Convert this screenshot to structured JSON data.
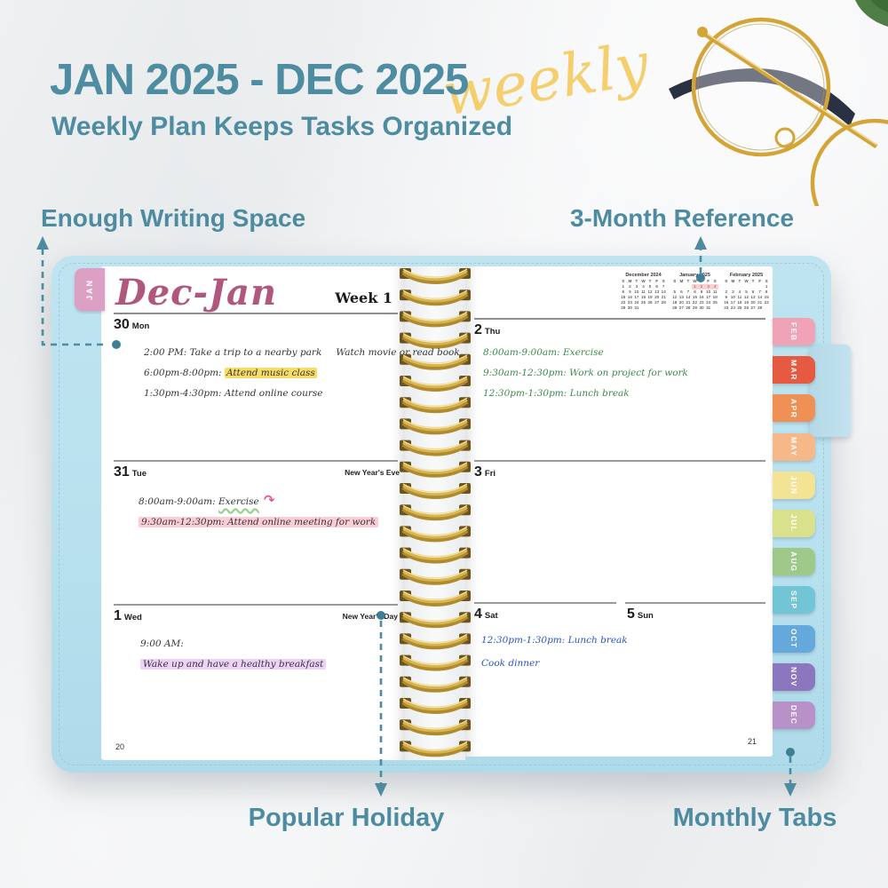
{
  "header": {
    "title": "JAN 2025 - DEC 2025",
    "script_word": "weekly",
    "subtitle": "Weekly Plan Keeps Tasks Organized"
  },
  "annotations": {
    "writing_space": "Enough Writing Space",
    "reference": "3-Month Reference",
    "holiday": "Popular Holiday",
    "tabs": "Monthly Tabs"
  },
  "colors": {
    "accent_teal": "#4D8BA1",
    "script_yellow": "#F5CE6E",
    "cover_blue": "#BAE2EF",
    "month_title_mauve": "#B0577D",
    "spiral_gold": "#C9A23E"
  },
  "planner": {
    "jan_tab_label": "JAN",
    "month_tabs": [
      {
        "label": "FEB",
        "color": "#f0a3b6"
      },
      {
        "label": "MAR",
        "color": "#e55a41"
      },
      {
        "label": "APR",
        "color": "#ef9054"
      },
      {
        "label": "MAY",
        "color": "#f6b888"
      },
      {
        "label": "JUN",
        "color": "#f3e394"
      },
      {
        "label": "JUL",
        "color": "#d9e18c"
      },
      {
        "label": "AUG",
        "color": "#9ec98b"
      },
      {
        "label": "SEP",
        "color": "#72c5d4"
      },
      {
        "label": "OCT",
        "color": "#64a8dc"
      },
      {
        "label": "NOV",
        "color": "#8a77bd"
      },
      {
        "label": "DEC",
        "color": "#b791c8"
      }
    ],
    "left_page": {
      "month_title": "Dec-Jan",
      "week_label": "Week 1",
      "page_number": "20",
      "days": [
        {
          "date": "30",
          "weekday": "Mon",
          "note": "",
          "entries": [
            {
              "parts": [
                {
                  "text": "2:00 PM: Take a trip to a nearby park"
                },
                {
                  "text": "Watch movie or read book",
                  "cls": "gap"
                }
              ]
            },
            {
              "parts": [
                {
                  "text": "6:00pm-8:00pm: "
                },
                {
                  "text": "Attend music class",
                  "cls": "hl-yellow"
                }
              ]
            },
            {
              "parts": [
                {
                  "text": "1:30pm-4:30pm: Attend online course"
                }
              ]
            }
          ]
        },
        {
          "date": "31",
          "weekday": "Tue",
          "note": "New Year's Eve",
          "entries": [
            {
              "parts": [
                {
                  "text": "8:00am-9:00am: "
                },
                {
                  "text": "Exercise",
                  "cls": "u-wavy"
                },
                {
                  "text": " ↷",
                  "cls": "arrow-pink"
                }
              ]
            },
            {
              "parts": [
                {
                  "text": "9:30am-12:30pm: Attend online meeting for work",
                  "cls": "hl-pink"
                }
              ]
            }
          ]
        },
        {
          "date": "1",
          "weekday": "Wed",
          "note": "New Year's Day",
          "entries": [
            {
              "parts": [
                {
                  "text": "9:00 AM:"
                }
              ]
            },
            {
              "parts": [
                {
                  "text": "Wake up and have a healthy breakfast",
                  "cls": "hl-purple"
                }
              ]
            }
          ]
        }
      ]
    },
    "right_page": {
      "page_number": "21",
      "mini_calendars": [
        {
          "title": "December 2024",
          "day_header": [
            "S",
            "M",
            "T",
            "W",
            "T",
            "F",
            "S"
          ],
          "weeks": [
            [
              "1",
              "2",
              "3",
              "4",
              "5",
              "6",
              "7"
            ],
            [
              "8",
              "9",
              "10",
              "11",
              "12",
              "13",
              "14"
            ],
            [
              "15",
              "16",
              "17",
              "18",
              "19",
              "20",
              "21"
            ],
            [
              "22",
              "23",
              "24",
              "25",
              "26",
              "27",
              "28"
            ],
            [
              "29",
              "30",
              "31",
              "",
              "",
              "",
              ""
            ]
          ],
          "highlight_week": -1
        },
        {
          "title": "January 2025",
          "day_header": [
            "S",
            "M",
            "T",
            "W",
            "T",
            "F",
            "S"
          ],
          "weeks": [
            [
              "",
              "",
              "",
              "1",
              "2",
              "3",
              "4"
            ],
            [
              "5",
              "6",
              "7",
              "8",
              "9",
              "10",
              "11"
            ],
            [
              "12",
              "13",
              "14",
              "15",
              "16",
              "17",
              "18"
            ],
            [
              "19",
              "20",
              "21",
              "22",
              "23",
              "24",
              "25"
            ],
            [
              "26",
              "27",
              "28",
              "29",
              "30",
              "31",
              ""
            ]
          ],
          "highlight_week": 0
        },
        {
          "title": "February 2025",
          "day_header": [
            "S",
            "M",
            "T",
            "W",
            "T",
            "F",
            "S"
          ],
          "weeks": [
            [
              "",
              "",
              "",
              "",
              "",
              "",
              "1"
            ],
            [
              "2",
              "3",
              "4",
              "5",
              "6",
              "7",
              "8"
            ],
            [
              "9",
              "10",
              "11",
              "12",
              "13",
              "14",
              "15"
            ],
            [
              "16",
              "17",
              "18",
              "19",
              "20",
              "21",
              "22"
            ],
            [
              "23",
              "24",
              "25",
              "26",
              "27",
              "28",
              ""
            ]
          ],
          "highlight_week": -1
        }
      ],
      "days": [
        {
          "date": "2",
          "weekday": "Thu",
          "entries": [
            {
              "parts": [
                {
                  "text": "8:00am-9:00am: Exercise"
                }
              ]
            },
            {
              "parts": [
                {
                  "text": "9:30am-12:30pm: Work on project for work"
                }
              ]
            },
            {
              "parts": [
                {
                  "text": "12:30pm-1:30pm: Lunch break"
                }
              ]
            }
          ]
        },
        {
          "date": "3",
          "weekday": "Fri",
          "entries": []
        },
        {
          "date": "4",
          "weekday": "Sat",
          "entries": [
            {
              "parts": [
                {
                  "text": "12:30pm-1:30pm: Lunch break"
                }
              ]
            },
            {
              "parts": [
                {
                  "text": "Cook dinner"
                }
              ]
            }
          ]
        },
        {
          "date": "5",
          "weekday": "Sun",
          "entries": []
        }
      ]
    }
  }
}
